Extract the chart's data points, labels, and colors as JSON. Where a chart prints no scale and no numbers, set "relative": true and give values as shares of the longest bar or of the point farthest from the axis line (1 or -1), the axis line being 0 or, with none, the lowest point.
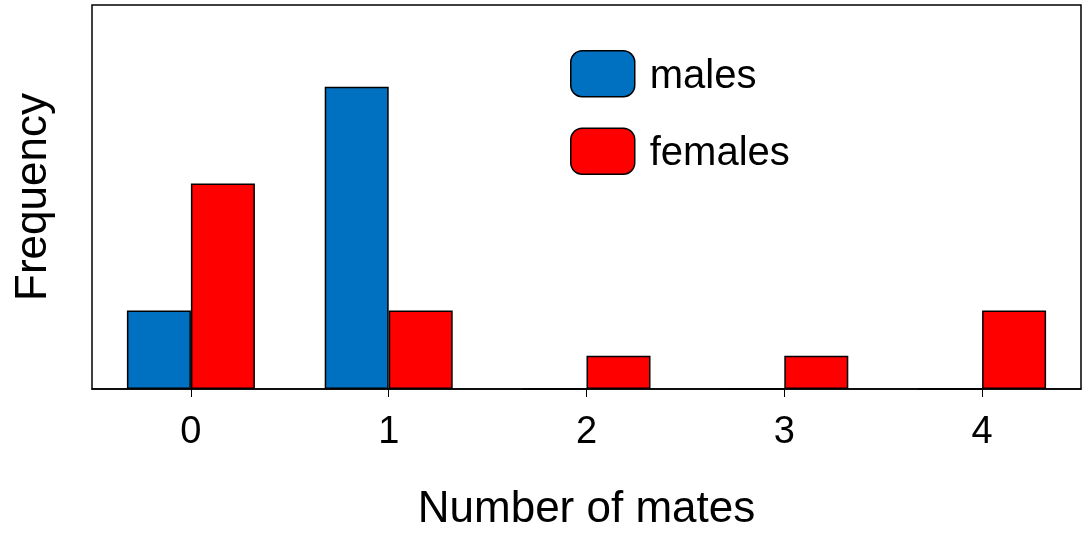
{
  "chart_data": {
    "type": "bar",
    "xlabel": "Number of mates",
    "ylabel": "Frequency",
    "categories": [
      "0",
      "1",
      "2",
      "3",
      "4"
    ],
    "relative": true,
    "series": [
      {
        "name": "males",
        "color": "#0070c0",
        "values": [
          0.26,
          1,
          0,
          0,
          0
        ]
      },
      {
        "name": "females",
        "color": "#ff0000",
        "values": [
          0.68,
          0.26,
          0.11,
          0.11,
          0.26
        ]
      }
    ],
    "legend": "top right",
    "grid": false
  }
}
